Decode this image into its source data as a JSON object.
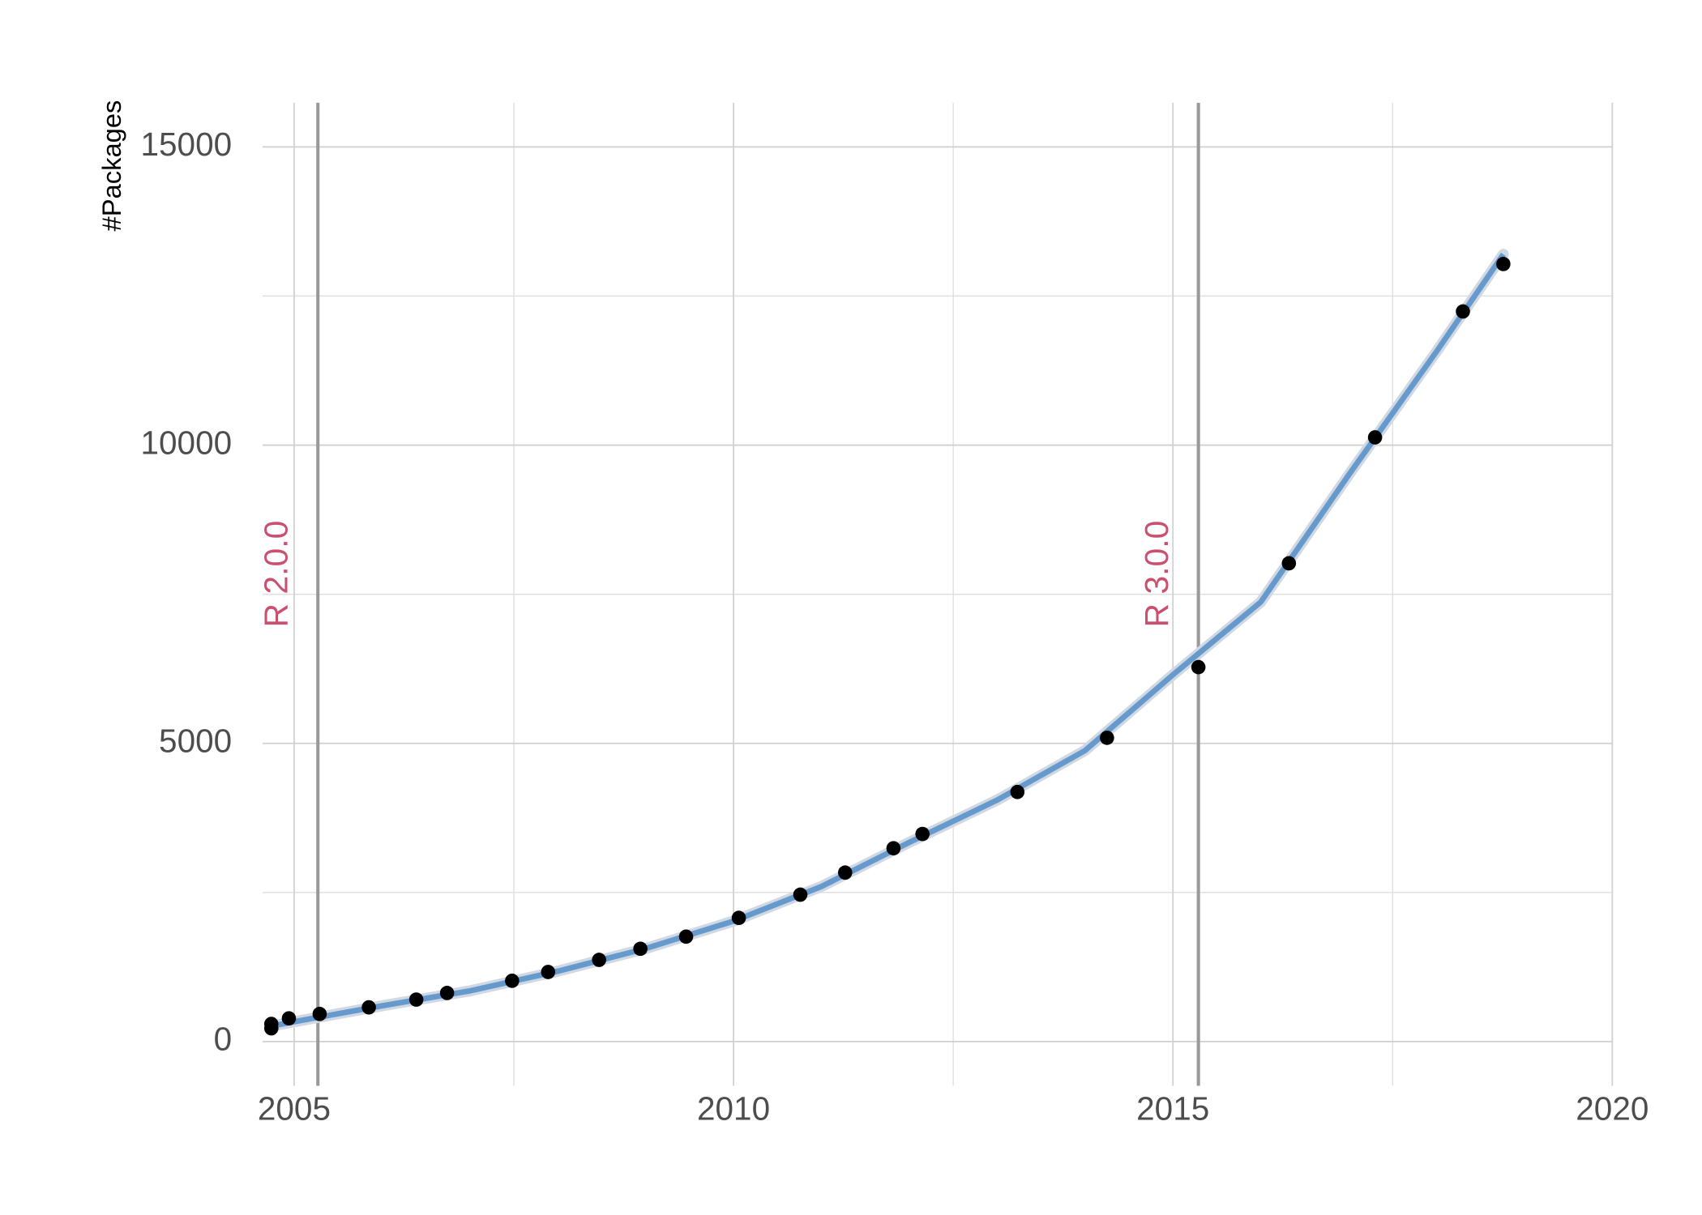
{
  "chart_data": {
    "type": "scatter",
    "y_label": "#Packages",
    "x": [
      2004.74,
      2004.74,
      2004.94,
      2005.29,
      2005.85,
      2006.39,
      2006.74,
      2007.48,
      2007.89,
      2008.47,
      2008.94,
      2009.46,
      2010.06,
      2010.76,
      2011.27,
      2011.82,
      2012.15,
      2013.23,
      2014.25,
      2015.29,
      2016.32,
      2017.3,
      2018.3,
      2018.76
    ],
    "values": [
      222,
      296,
      389,
      463,
      574,
      704,
      815,
      1019,
      1167,
      1370,
      1556,
      1759,
      2074,
      2463,
      2833,
      3241,
      3481,
      4185,
      5093,
      6278,
      8019,
      10130,
      12241,
      13037
    ],
    "color": "#000000",
    "fit": {
      "x": [
        2004.74,
        2005,
        2006,
        2007,
        2008,
        2009,
        2010,
        2011,
        2012,
        2013,
        2014,
        2015,
        2016,
        2017,
        2018,
        2018.76
      ],
      "values": [
        259,
        333,
        600,
        850,
        1180,
        1560,
        2020,
        2600,
        3340,
        4050,
        4880,
        6150,
        7370,
        9500,
        11570,
        13200
      ],
      "color": "#6699cc"
    },
    "annotations": [
      {
        "x": 2005.27,
        "label": "R 2.0.0"
      },
      {
        "x": 2015.29,
        "label": "R 3.0.0"
      }
    ],
    "annotation_color": "#c9506f",
    "xlim": [
      2004.64,
      2020
    ],
    "ylim": [
      -741,
      15741
    ],
    "xticks": [
      2005,
      2010,
      2015,
      2020
    ],
    "yticks": [
      0,
      5000,
      10000,
      15000
    ],
    "xminorticks": [
      2007.5,
      2012.5,
      2017.5
    ],
    "yminorticks": [
      2500,
      7500,
      12500
    ],
    "grid": true
  }
}
